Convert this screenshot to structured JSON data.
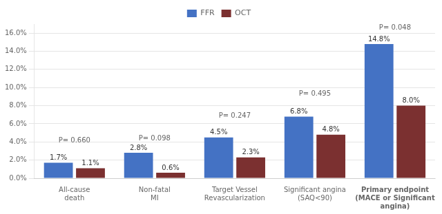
{
  "chart_data": {
    "type": "bar",
    "categories": [
      "All-cause\ndeath",
      "Non-fatal\nMI",
      "Target Vessel\nRevascularization",
      "Significant angina\n(SAQ<90)",
      "Primary endpoint\n(MACE or Significant\nangina)"
    ],
    "series": [
      {
        "name": "FFR",
        "color": "#4472C4",
        "values": [
          1.7,
          2.8,
          4.5,
          6.8,
          14.8
        ],
        "value_labels": [
          "1.7%",
          "2.8%",
          "4.5%",
          "6.8%",
          "14.8%"
        ]
      },
      {
        "name": "OCT",
        "color": "#7B3030",
        "values": [
          1.1,
          0.6,
          2.3,
          4.8,
          8.0
        ],
        "value_labels": [
          "1.1%",
          "0.6%",
          "2.3%",
          "4.8%",
          "8.0%"
        ]
      }
    ],
    "data_labels": true,
    "annotations": [
      {
        "text": "P= 0.660",
        "category": "All-cause\ndeath",
        "y": 3.8
      },
      {
        "text": "P= 0.098",
        "category": "Non-fatal\nMI",
        "y": 4.0
      },
      {
        "text": "P= 0.247",
        "category": "Target Vessel\nRevascularization",
        "y": 6.5
      },
      {
        "text": "P= 0.495",
        "category": "Significant angina\n(SAQ<90)",
        "y": 8.9
      },
      {
        "text": "P= 0.048",
        "category": "Primary endpoint\n(MACE or Significant\nangina)",
        "y": 16.2
      }
    ],
    "ylim": [
      0,
      17.0
    ],
    "yticks": [
      {
        "value": 0,
        "label": "0.0%"
      },
      {
        "value": 2,
        "label": "2.0%"
      },
      {
        "value": 4,
        "label": "4.0%"
      },
      {
        "value": 6,
        "label": "6.0%"
      },
      {
        "value": 8,
        "label": "8.0%"
      },
      {
        "value": 10,
        "label": "10.0%"
      },
      {
        "value": 12,
        "label": "12.0%"
      },
      {
        "value": 14,
        "label": "14.0%"
      },
      {
        "value": 16,
        "label": "16.0%"
      }
    ],
    "grid": true,
    "legend": "top"
  }
}
